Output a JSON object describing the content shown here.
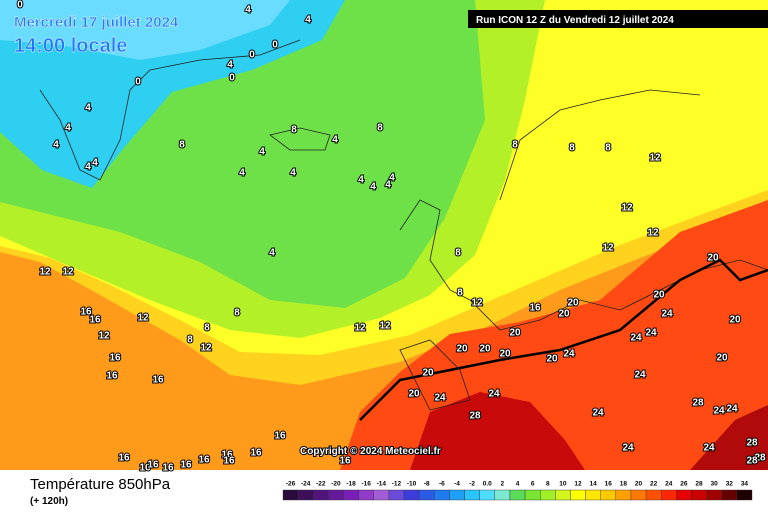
{
  "header": {
    "date": "Mercredi 17 juillet 2024",
    "time": "14:00 locale",
    "run": "Run ICON 12 Z du Vendredi 12 juillet 2024",
    "copyright": "Copyright © 2024 Meteociel.fr"
  },
  "footer": {
    "title": "Température 850hPa",
    "subtitle": "(+ 120h)"
  },
  "legend": {
    "labels": [
      "-26",
      "-24",
      "-22",
      "-20",
      "-18",
      "-16",
      "-14",
      "-12",
      "-10",
      "-8",
      "-6",
      "-4",
      "-2",
      "0.0",
      "2",
      "4",
      "6",
      "8",
      "10",
      "12",
      "14",
      "16",
      "18",
      "20",
      "22",
      "24",
      "26",
      "28",
      "30",
      "32",
      "34"
    ],
    "colors": [
      "#2a0a3a",
      "#3d0f5a",
      "#50147a",
      "#63199a",
      "#7a1fb5",
      "#8f3ac8",
      "#a35cd6",
      "#6a4ad8",
      "#3c3cdc",
      "#2a5ae6",
      "#1e7cf0",
      "#1ea0f5",
      "#28c4fa",
      "#50dcff",
      "#7ce8d0",
      "#5adc5a",
      "#78e632",
      "#a0f028",
      "#d2f51e",
      "#ffff00",
      "#ffe600",
      "#ffc800",
      "#ffa000",
      "#ff7800",
      "#ff5000",
      "#ff2800",
      "#e60000",
      "#c80000",
      "#a00000",
      "#640000",
      "#1e0000"
    ]
  },
  "contour_labels": [
    0,
    4,
    4,
    0,
    0,
    4,
    0,
    0,
    4,
    4,
    4,
    4,
    4,
    8,
    8,
    4,
    8,
    4,
    4,
    4,
    4,
    4,
    4,
    4,
    4,
    8,
    8,
    8,
    12,
    12,
    12,
    12,
    8,
    8,
    12,
    16,
    20,
    20,
    12,
    12,
    16,
    16,
    12,
    12,
    8,
    8,
    8,
    12,
    12,
    12,
    16,
    16,
    16,
    20,
    20,
    24,
    20,
    24,
    24,
    20,
    20,
    20,
    20,
    20,
    24,
    20,
    24,
    20,
    20,
    24,
    24,
    28,
    24,
    28,
    24,
    24,
    24,
    24,
    28,
    28,
    28,
    16,
    16,
    16,
    16,
    16,
    16,
    16,
    16,
    16,
    16,
    16
  ]
}
